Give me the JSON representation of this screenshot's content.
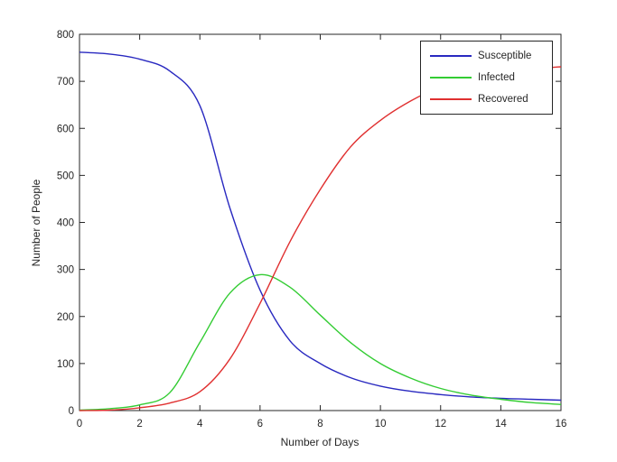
{
  "figure": {
    "background": "#ffffff",
    "axis_color": "#262626",
    "text_color": "#262626"
  },
  "chart_data": {
    "type": "line",
    "title": "",
    "xlabel": "Number of Days",
    "ylabel": "Number of People",
    "xlim": [
      0,
      16
    ],
    "ylim": [
      0,
      800
    ],
    "xticks": [
      0,
      2,
      4,
      6,
      8,
      10,
      12,
      14,
      16
    ],
    "yticks": [
      0,
      100,
      200,
      300,
      400,
      500,
      600,
      700,
      800
    ],
    "grid": false,
    "legend_position": "top-right",
    "x": [
      0,
      1,
      2,
      3,
      4,
      5,
      6,
      7,
      8,
      9,
      10,
      11,
      12,
      13,
      14,
      15,
      16
    ],
    "series": [
      {
        "name": "Susceptible",
        "color": "#2929c0",
        "values": [
          762,
          758,
          747,
          722,
          648,
          430,
          256,
          148,
          100,
          70,
          52,
          41,
          34,
          29,
          26,
          24,
          22
        ]
      },
      {
        "name": "Infected",
        "color": "#33cc33",
        "values": [
          1,
          4,
          12,
          38,
          145,
          250,
          289,
          262,
          203,
          145,
          100,
          69,
          47,
          33,
          24,
          17,
          13
        ]
      },
      {
        "name": "Recovered",
        "color": "#e03030",
        "values": [
          0,
          1,
          6,
          16,
          40,
          110,
          228,
          360,
          470,
          560,
          617,
          658,
          688,
          707,
          719,
          726,
          731
        ]
      }
    ]
  }
}
